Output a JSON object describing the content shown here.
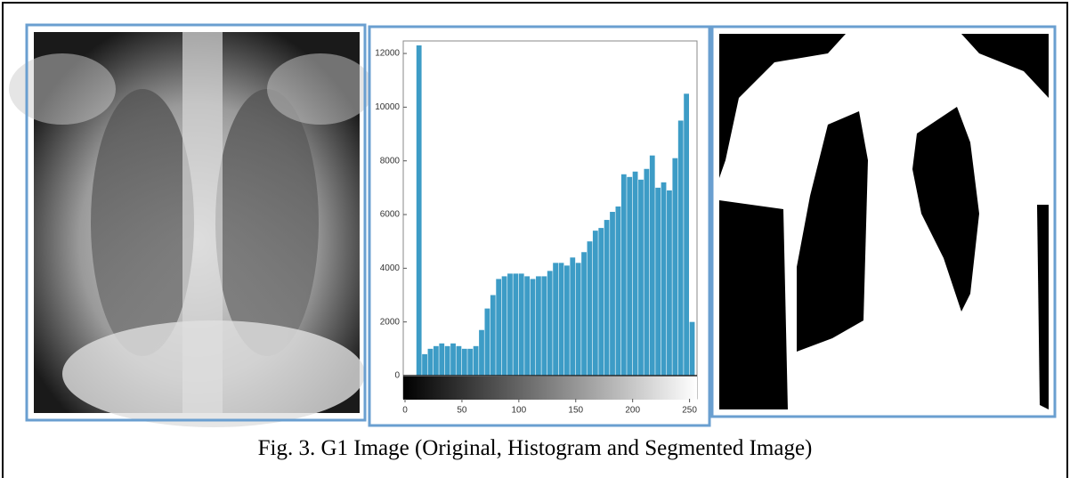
{
  "caption": "Fig. 3. G1 Image (Original, Histogram and Segmented Image)",
  "chart_data": {
    "type": "histogram",
    "color": "#3d9cc6",
    "bins": [
      0,
      5,
      10,
      15,
      20,
      25,
      30,
      35,
      40,
      45,
      50,
      55,
      60,
      65,
      70,
      75,
      80,
      85,
      90,
      95,
      100,
      105,
      110,
      115,
      120,
      125,
      130,
      135,
      140,
      145,
      150,
      155,
      160,
      165,
      170,
      175,
      180,
      185,
      190,
      195,
      200,
      205,
      210,
      215,
      220,
      225,
      230,
      235,
      240,
      245,
      250,
      255
    ],
    "values": [
      0,
      0,
      12300,
      800,
      1000,
      1100,
      1200,
      1100,
      1200,
      1100,
      1000,
      1000,
      1100,
      1700,
      2500,
      3000,
      3600,
      3700,
      3800,
      3800,
      3800,
      3700,
      3600,
      3700,
      3700,
      3900,
      4200,
      4200,
      4100,
      4400,
      4200,
      4600,
      5000,
      5400,
      5500,
      5800,
      6100,
      6300,
      7500,
      7400,
      7600,
      7300,
      7700,
      8200,
      7000,
      7200,
      6900,
      8100,
      9500,
      10500,
      2000
    ],
    "xlim": [
      0,
      255
    ],
    "xticks": [
      0,
      50,
      100,
      150,
      200,
      250
    ],
    "ylim": [
      0,
      12400
    ],
    "yticks": [
      0,
      2000,
      4000,
      6000,
      8000,
      10000,
      12000
    ]
  }
}
